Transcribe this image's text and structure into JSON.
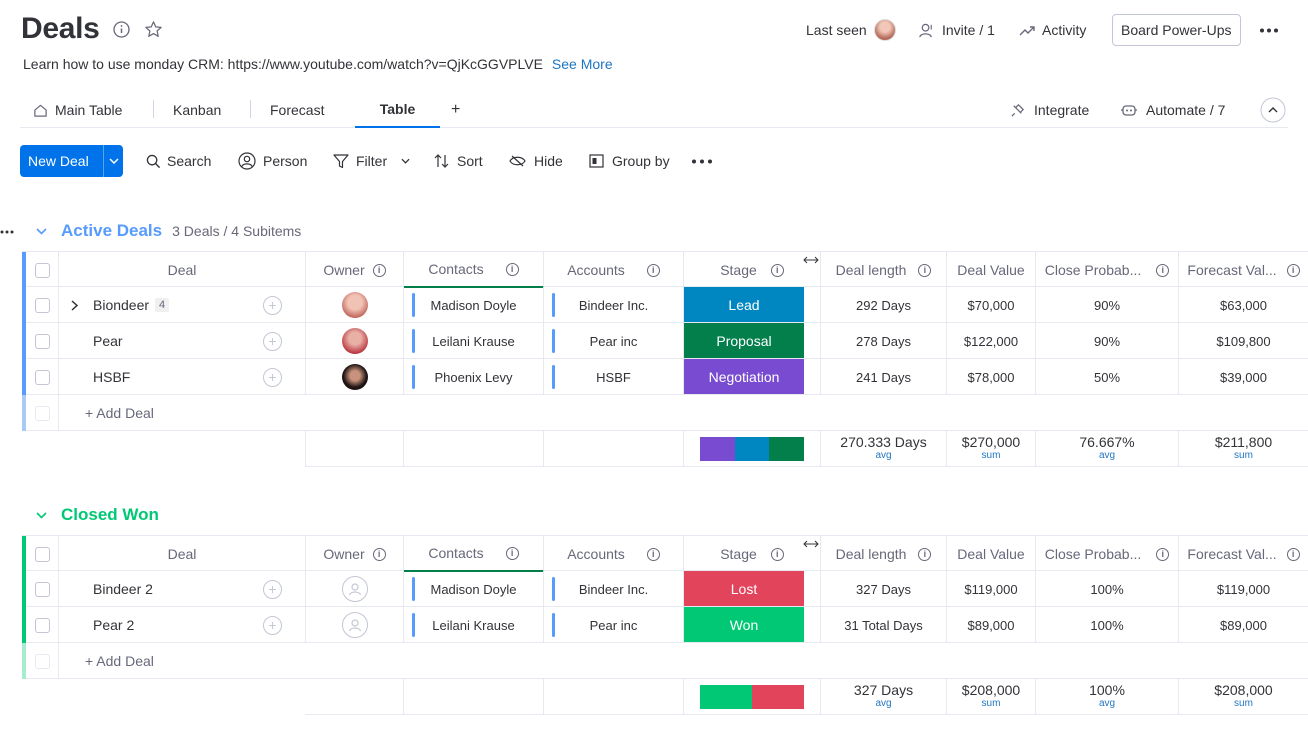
{
  "board": {
    "title": "Deals",
    "description": "Learn how to use monday CRM: https://www.youtube.com/watch?v=QjKcGGVPLVE",
    "see_more": "See More",
    "last_seen": "Last seen",
    "invite": "Invite / 1",
    "activity": "Activity",
    "power_ups": "Board Power-Ups"
  },
  "tabs": [
    {
      "label": "Main Table"
    },
    {
      "label": "Kanban"
    },
    {
      "label": "Forecast"
    },
    {
      "label": "Table"
    }
  ],
  "tab_add": "+",
  "integrate": "Integrate",
  "automate": "Automate / 7",
  "toolbar": {
    "new_deal": "New Deal",
    "search": "Search",
    "person": "Person",
    "filter": "Filter",
    "sort": "Sort",
    "hide": "Hide",
    "group_by": "Group by"
  },
  "columns": {
    "deal": "Deal",
    "owner": "Owner",
    "contacts": "Contacts",
    "accounts": "Accounts",
    "stage": "Stage",
    "deal_length": "Deal length",
    "deal_value": "Deal Value",
    "close_prob": "Close Probab...",
    "forecast": "Forecast Val..."
  },
  "groups": [
    {
      "title": "Active Deals",
      "color": "#579bfc",
      "meta": "3 Deals / 4 Subitems",
      "add_label": "+ Add Deal",
      "rows": [
        {
          "deal": "Biondeer",
          "subitems": "4",
          "contact": "Madison Doyle",
          "account": "Bindeer Inc.",
          "stage": "Lead",
          "stage_color": "#0086c0",
          "length": "292 Days",
          "value": "$70,000",
          "prob": "90%",
          "forecast": "$63,000"
        },
        {
          "deal": "Pear",
          "contact": "Leilani Krause",
          "account": "Pear inc",
          "stage": "Proposal",
          "stage_color": "#037f4c",
          "length": "278 Days",
          "value": "$122,000",
          "prob": "90%",
          "forecast": "$109,800"
        },
        {
          "deal": "HSBF",
          "contact": "Phoenix Levy",
          "account": "HSBF",
          "stage": "Negotiation",
          "stage_color": "#784bd1",
          "length": "241 Days",
          "value": "$78,000",
          "prob": "50%",
          "forecast": "$39,000"
        }
      ],
      "summary": {
        "length": "270.333 Days",
        "length_fn": "avg",
        "value": "$270,000",
        "value_fn": "sum",
        "prob": "76.667%",
        "prob_fn": "avg",
        "forecast": "$211,800",
        "forecast_fn": "sum"
      },
      "stage_bar": [
        {
          "color": "#784bd1",
          "share": 0.333
        },
        {
          "color": "#0086c0",
          "share": 0.333
        },
        {
          "color": "#037f4c",
          "share": 0.334
        }
      ]
    },
    {
      "title": "Closed Won",
      "color": "#00c875",
      "add_label": "+ Add Deal",
      "rows": [
        {
          "deal": "Bindeer 2",
          "contact": "Madison Doyle",
          "account": "Bindeer Inc.",
          "stage": "Lost",
          "stage_color": "#e2445c",
          "length": "327 Days",
          "value": "$119,000",
          "prob": "100%",
          "forecast": "$119,000"
        },
        {
          "deal": "Pear 2",
          "contact": "Leilani Krause",
          "account": "Pear inc",
          "stage": "Won",
          "stage_color": "#00c875",
          "length": "31 Total Days",
          "value": "$89,000",
          "prob": "100%",
          "forecast": "$89,000"
        }
      ],
      "summary": {
        "length": "327 Days",
        "length_fn": "avg",
        "value": "$208,000",
        "value_fn": "sum",
        "prob": "100%",
        "prob_fn": "avg",
        "forecast": "$208,000",
        "forecast_fn": "sum"
      },
      "stage_bar": [
        {
          "color": "#00c875",
          "share": 0.5
        },
        {
          "color": "#e2445c",
          "share": 0.5
        }
      ]
    }
  ]
}
